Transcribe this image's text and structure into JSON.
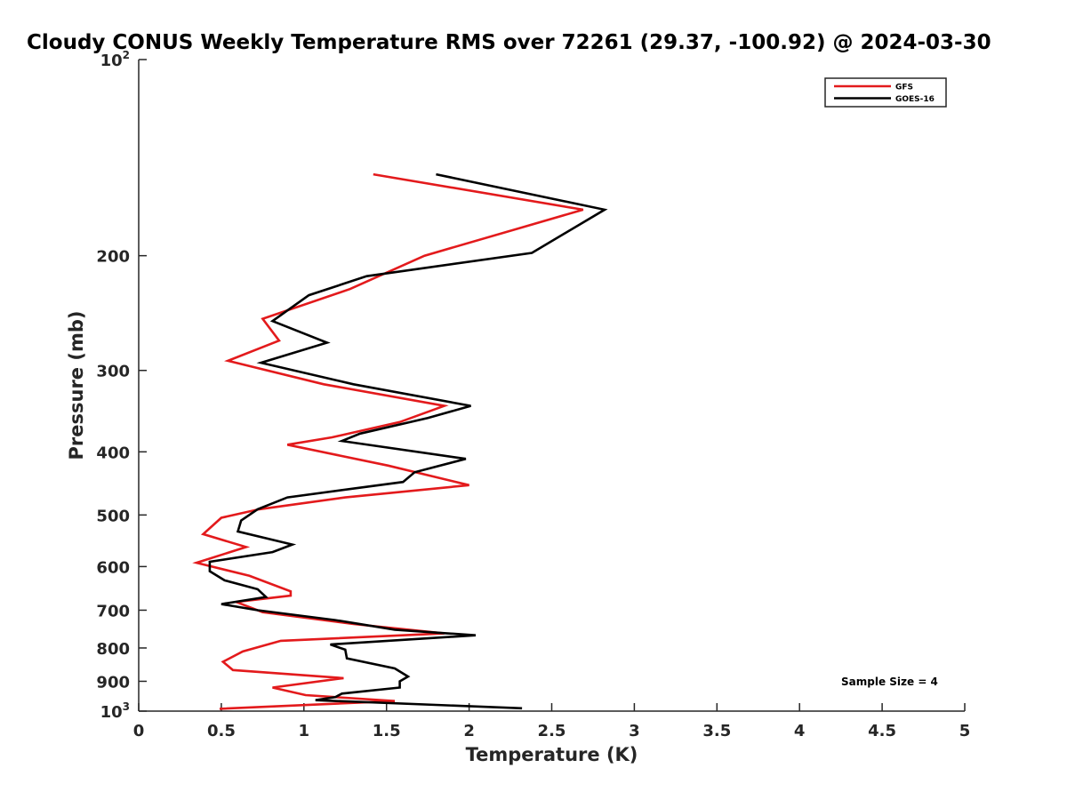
{
  "chart_data": {
    "type": "line",
    "title": "Cloudy CONUS Weekly Temperature RMS over 72261 (29.37, -100.92) @ 2024-03-30",
    "xlabel": "Temperature (K)",
    "ylabel": "Pressure (mb)",
    "xlim": [
      0,
      5
    ],
    "ylim": [
      100,
      1000
    ],
    "y_scale": "log",
    "y_reversed": true,
    "grid": false,
    "legend_position": "top-right",
    "x_ticks": [
      {
        "value": 0,
        "label": "0"
      },
      {
        "value": 0.5,
        "label": "0.5"
      },
      {
        "value": 1,
        "label": "1"
      },
      {
        "value": 1.5,
        "label": "1.5"
      },
      {
        "value": 2,
        "label": "2"
      },
      {
        "value": 2.5,
        "label": "2.5"
      },
      {
        "value": 3,
        "label": "3"
      },
      {
        "value": 3.5,
        "label": "3.5"
      },
      {
        "value": 4,
        "label": "4"
      },
      {
        "value": 4.5,
        "label": "4.5"
      },
      {
        "value": 5,
        "label": "5"
      }
    ],
    "y_ticks": [
      {
        "value": 100,
        "base": "10",
        "sup": "2"
      },
      {
        "value": 200,
        "label": "200"
      },
      {
        "value": 300,
        "label": "300"
      },
      {
        "value": 400,
        "label": "400"
      },
      {
        "value": 500,
        "label": "500"
      },
      {
        "value": 600,
        "label": "600"
      },
      {
        "value": 700,
        "label": "700"
      },
      {
        "value": 800,
        "label": "800"
      },
      {
        "value": 900,
        "label": "900"
      },
      {
        "value": 1000,
        "base": "10",
        "sup": "3"
      }
    ],
    "series": [
      {
        "name": "GFS",
        "color": "#e31a1c",
        "points": [
          [
            1.42,
            150
          ],
          [
            2.69,
            170
          ],
          [
            1.73,
            200
          ],
          [
            1.28,
            225
          ],
          [
            0.75,
            250
          ],
          [
            0.85,
            270
          ],
          [
            0.54,
            290
          ],
          [
            1.12,
            315
          ],
          [
            1.85,
            340
          ],
          [
            1.58,
            360
          ],
          [
            1.17,
            380
          ],
          [
            0.9,
            390
          ],
          [
            1.51,
            420
          ],
          [
            2.0,
            450
          ],
          [
            1.25,
            470
          ],
          [
            0.73,
            490
          ],
          [
            0.5,
            505
          ],
          [
            0.39,
            535
          ],
          [
            0.65,
            560
          ],
          [
            0.35,
            592
          ],
          [
            0.67,
            620
          ],
          [
            0.92,
            655
          ],
          [
            0.92,
            665
          ],
          [
            0.59,
            680
          ],
          [
            0.75,
            705
          ],
          [
            1.3,
            735
          ],
          [
            1.85,
            760
          ],
          [
            0.86,
            780
          ],
          [
            0.63,
            810
          ],
          [
            0.51,
            840
          ],
          [
            0.57,
            865
          ],
          [
            1.24,
            890
          ],
          [
            0.81,
            920
          ],
          [
            1.01,
            945
          ],
          [
            1.55,
            965
          ],
          [
            0.49,
            992
          ]
        ]
      },
      {
        "name": "GOES-16",
        "color": "#000000",
        "points": [
          [
            1.8,
            150
          ],
          [
            2.82,
            170
          ],
          [
            2.38,
            198
          ],
          [
            1.38,
            215
          ],
          [
            1.03,
            230
          ],
          [
            0.81,
            252
          ],
          [
            1.14,
            272
          ],
          [
            0.74,
            292
          ],
          [
            1.3,
            315
          ],
          [
            2.01,
            340
          ],
          [
            1.75,
            355
          ],
          [
            1.34,
            375
          ],
          [
            1.23,
            385
          ],
          [
            1.98,
            410
          ],
          [
            1.67,
            430
          ],
          [
            1.6,
            445
          ],
          [
            0.9,
            470
          ],
          [
            0.72,
            490
          ],
          [
            0.62,
            510
          ],
          [
            0.6,
            530
          ],
          [
            0.93,
            555
          ],
          [
            0.81,
            570
          ],
          [
            0.43,
            590
          ],
          [
            0.43,
            610
          ],
          [
            0.52,
            630
          ],
          [
            0.72,
            650
          ],
          [
            0.77,
            668
          ],
          [
            0.5,
            685
          ],
          [
            0.72,
            700
          ],
          [
            1.19,
            725
          ],
          [
            1.55,
            750
          ],
          [
            2.04,
            765
          ],
          [
            1.16,
            790
          ],
          [
            1.25,
            805
          ],
          [
            1.26,
            830
          ],
          [
            1.55,
            860
          ],
          [
            1.63,
            885
          ],
          [
            1.58,
            900
          ],
          [
            1.58,
            920
          ],
          [
            1.23,
            940
          ],
          [
            1.19,
            952
          ],
          [
            1.07,
            962
          ],
          [
            2.32,
            990
          ]
        ]
      }
    ],
    "annotations": [
      {
        "text": "Sample Size = 4"
      }
    ]
  }
}
